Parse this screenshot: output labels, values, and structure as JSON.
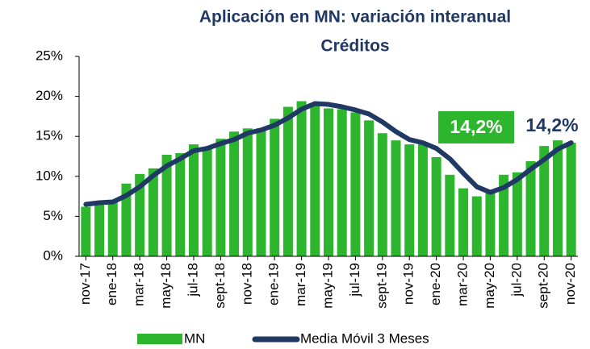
{
  "chart_data": {
    "type": "bar_line",
    "title": "Aplicación en MN: variación interanual",
    "subtitle": "Créditos",
    "categories": [
      "nov-17",
      null,
      "ene-18",
      null,
      "mar-18",
      null,
      "may-18",
      null,
      "jul-18",
      null,
      "sept-18",
      null,
      "nov-18",
      null,
      "ene-19",
      null,
      "mar-19",
      null,
      "may-19",
      null,
      "jul-19",
      null,
      "sept-19",
      null,
      "nov-19",
      null,
      "ene-20",
      null,
      "mar-20",
      null,
      "may-20",
      null,
      "jul-20",
      null,
      "sept-20",
      null,
      "nov-20"
    ],
    "series": [
      {
        "name": "MN",
        "color": "#2db52d",
        "values": [
          6.2,
          6.5,
          6.8,
          9.1,
          10.3,
          11.0,
          12.7,
          12.9,
          14.0,
          13.6,
          14.7,
          15.6,
          16.0,
          16.0,
          17.2,
          18.7,
          19.4,
          19.1,
          18.5,
          18.4,
          18.0,
          17.0,
          15.4,
          14.5,
          14.0,
          14.0,
          12.4,
          10.2,
          8.5,
          7.5,
          8.0,
          10.2,
          10.5,
          11.9,
          13.8,
          14.5,
          14.2
        ]
      },
      {
        "name": "Media Móvil 3 Meses",
        "color": "#1f3864",
        "values": [
          6.5,
          6.7,
          6.8,
          7.6,
          8.7,
          10.1,
          11.3,
          12.2,
          13.2,
          13.5,
          14.1,
          14.6,
          15.4,
          15.8,
          16.4,
          17.3,
          18.4,
          19.1,
          19.0,
          18.7,
          18.3,
          17.8,
          16.8,
          15.6,
          14.6,
          14.2,
          13.5,
          12.2,
          10.4,
          8.7,
          8.0,
          8.6,
          9.6,
          10.9,
          12.1,
          13.4,
          14.2
        ]
      }
    ],
    "annotations": [
      "14,2%",
      "14,2%"
    ],
    "ylim": [
      0,
      25
    ],
    "yticks": [
      {
        "value": 0,
        "label": "0%"
      },
      {
        "value": 5,
        "label": "5%"
      },
      {
        "value": 10,
        "label": "10%"
      },
      {
        "value": 15,
        "label": "15%"
      },
      {
        "value": 20,
        "label": "20%"
      },
      {
        "value": 25,
        "label": "25%"
      }
    ],
    "grid": false
  }
}
